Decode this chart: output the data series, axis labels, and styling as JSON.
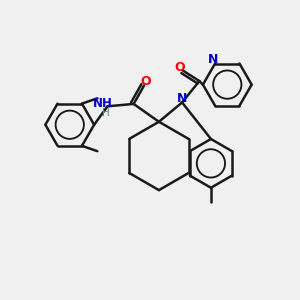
{
  "bg_color": "#f0f0f0",
  "atom_color_N": "#0000cc",
  "atom_color_O": "#ff0000",
  "atom_color_H": "#4a9090",
  "bond_color": "#1a1a1a",
  "bond_width": 1.8,
  "figsize": [
    3.0,
    3.0
  ],
  "dpi": 100,
  "xlim": [
    0,
    10
  ],
  "ylim": [
    0,
    10
  ]
}
